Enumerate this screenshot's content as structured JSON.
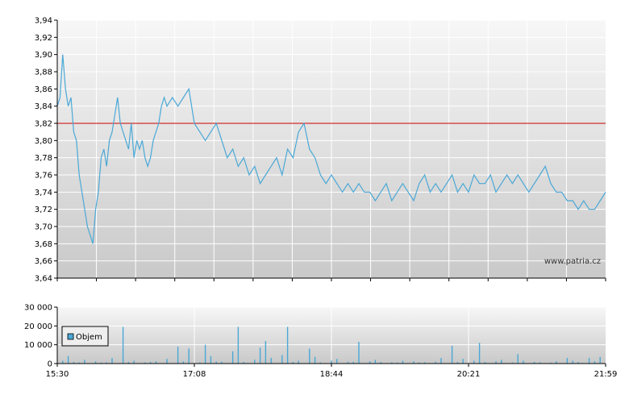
{
  "watermark": "www.patria.cz",
  "chart_data": [
    {
      "type": "line",
      "name": "price",
      "ylim": [
        3.64,
        3.94
      ],
      "y_ticks": [
        "3,64",
        "3,66",
        "3,68",
        "3,70",
        "3,72",
        "3,74",
        "3,76",
        "3,78",
        "3,80",
        "3,82",
        "3,84",
        "3,86",
        "3,88",
        "3,90",
        "3,92",
        "3,94"
      ],
      "reference_line": 3.82,
      "grid": true,
      "colors": {
        "line": "#4aa8d6",
        "reference": "#cc0000",
        "bg_top": "#f7f7f7",
        "bg_bottom": "#c9c9c9",
        "grid": "#ffffff"
      },
      "series": [
        {
          "x": [
            0,
            0.005,
            0.01,
            0.015,
            0.02,
            0.025,
            0.03,
            0.035,
            0.04,
            0.045,
            0.05,
            0.055,
            0.06,
            0.065,
            0.07,
            0.075,
            0.08,
            0.085,
            0.09,
            0.095,
            0.1,
            0.105,
            0.11,
            0.115,
            0.12,
            0.125,
            0.13,
            0.135,
            0.14,
            0.145,
            0.15,
            0.155,
            0.16,
            0.165,
            0.17,
            0.175,
            0.18,
            0.185,
            0.19,
            0.195,
            0.2,
            0.21,
            0.22,
            0.23,
            0.24,
            0.25,
            0.26,
            0.27,
            0.28,
            0.29,
            0.3,
            0.31,
            0.32,
            0.33,
            0.34,
            0.35,
            0.36,
            0.37,
            0.38,
            0.39,
            0.4,
            0.41,
            0.42,
            0.43,
            0.44,
            0.45,
            0.46,
            0.47,
            0.48,
            0.49,
            0.5,
            0.51,
            0.52,
            0.53,
            0.54,
            0.55,
            0.56,
            0.57,
            0.58,
            0.59,
            0.6,
            0.61,
            0.62,
            0.63,
            0.64,
            0.65,
            0.66,
            0.67,
            0.68,
            0.69,
            0.7,
            0.71,
            0.72,
            0.73,
            0.74,
            0.75,
            0.76,
            0.77,
            0.78,
            0.79,
            0.8,
            0.81,
            0.82,
            0.83,
            0.84,
            0.85,
            0.86,
            0.87,
            0.88,
            0.89,
            0.9,
            0.91,
            0.92,
            0.93,
            0.94,
            0.95,
            0.96,
            0.97,
            0.98,
            0.99,
            1.0
          ],
          "y": [
            3.84,
            3.85,
            3.9,
            3.86,
            3.84,
            3.85,
            3.81,
            3.8,
            3.76,
            3.74,
            3.72,
            3.7,
            3.69,
            3.68,
            3.72,
            3.74,
            3.78,
            3.79,
            3.77,
            3.8,
            3.81,
            3.83,
            3.85,
            3.82,
            3.81,
            3.8,
            3.79,
            3.82,
            3.78,
            3.8,
            3.79,
            3.8,
            3.78,
            3.77,
            3.78,
            3.8,
            3.81,
            3.82,
            3.84,
            3.85,
            3.84,
            3.85,
            3.84,
            3.85,
            3.86,
            3.82,
            3.81,
            3.8,
            3.81,
            3.82,
            3.8,
            3.78,
            3.79,
            3.77,
            3.78,
            3.76,
            3.77,
            3.75,
            3.76,
            3.77,
            3.78,
            3.76,
            3.79,
            3.78,
            3.81,
            3.82,
            3.79,
            3.78,
            3.76,
            3.75,
            3.76,
            3.75,
            3.74,
            3.75,
            3.74,
            3.75,
            3.74,
            3.74,
            3.73,
            3.74,
            3.75,
            3.73,
            3.74,
            3.75,
            3.74,
            3.73,
            3.75,
            3.76,
            3.74,
            3.75,
            3.74,
            3.75,
            3.76,
            3.74,
            3.75,
            3.74,
            3.76,
            3.75,
            3.75,
            3.76,
            3.74,
            3.75,
            3.76,
            3.75,
            3.76,
            3.75,
            3.74,
            3.75,
            3.76,
            3.77,
            3.75,
            3.74,
            3.74,
            3.73,
            3.73,
            3.72,
            3.73,
            3.72,
            3.72,
            3.73,
            3.74
          ]
        }
      ]
    },
    {
      "type": "bar",
      "name": "volume",
      "ylim": [
        0,
        30000
      ],
      "y_ticks": [
        "0",
        "10 000",
        "20 000",
        "30 000"
      ],
      "x_ticks": [
        "15:30",
        "17:08",
        "18:44",
        "20:21",
        "21:59"
      ],
      "legend": {
        "label": "Objem",
        "placement": "top-left"
      },
      "colors": {
        "bar": "#4aa8d6",
        "bg_top": "#f7f7f7",
        "bg_bottom": "#c9c9c9",
        "grid": "#ffffff"
      },
      "series": [
        {
          "x": [
            0.01,
            0.02,
            0.03,
            0.04,
            0.05,
            0.07,
            0.08,
            0.09,
            0.1,
            0.12,
            0.13,
            0.14,
            0.16,
            0.17,
            0.18,
            0.2,
            0.22,
            0.23,
            0.24,
            0.26,
            0.27,
            0.28,
            0.29,
            0.3,
            0.32,
            0.33,
            0.34,
            0.36,
            0.37,
            0.38,
            0.39,
            0.41,
            0.42,
            0.43,
            0.44,
            0.46,
            0.47,
            0.48,
            0.5,
            0.51,
            0.53,
            0.54,
            0.55,
            0.57,
            0.58,
            0.59,
            0.61,
            0.62,
            0.63,
            0.65,
            0.66,
            0.67,
            0.69,
            0.7,
            0.72,
            0.73,
            0.74,
            0.76,
            0.77,
            0.78,
            0.8,
            0.81,
            0.83,
            0.84,
            0.85,
            0.87,
            0.88,
            0.9,
            0.91,
            0.93,
            0.94,
            0.95,
            0.97,
            0.98,
            0.99
          ],
          "values": [
            1500,
            4000,
            800,
            600,
            2000,
            1200,
            500,
            700,
            3000,
            19500,
            800,
            1500,
            600,
            900,
            1200,
            2500,
            9000,
            1200,
            8000,
            600,
            10000,
            4000,
            1100,
            1000,
            6500,
            19500,
            800,
            2000,
            8500,
            12000,
            3000,
            4500,
            19500,
            900,
            1500,
            8000,
            3500,
            600,
            1500,
            2500,
            1000,
            900,
            11500,
            1200,
            2000,
            800,
            700,
            500,
            1500,
            1200,
            600,
            700,
            1000,
            3000,
            9500,
            800,
            2500,
            1500,
            11000,
            800,
            1200,
            2000,
            600,
            5000,
            1500,
            800,
            700,
            500,
            1200,
            3000,
            1500,
            800,
            3000,
            1200,
            3500
          ]
        }
      ]
    }
  ]
}
